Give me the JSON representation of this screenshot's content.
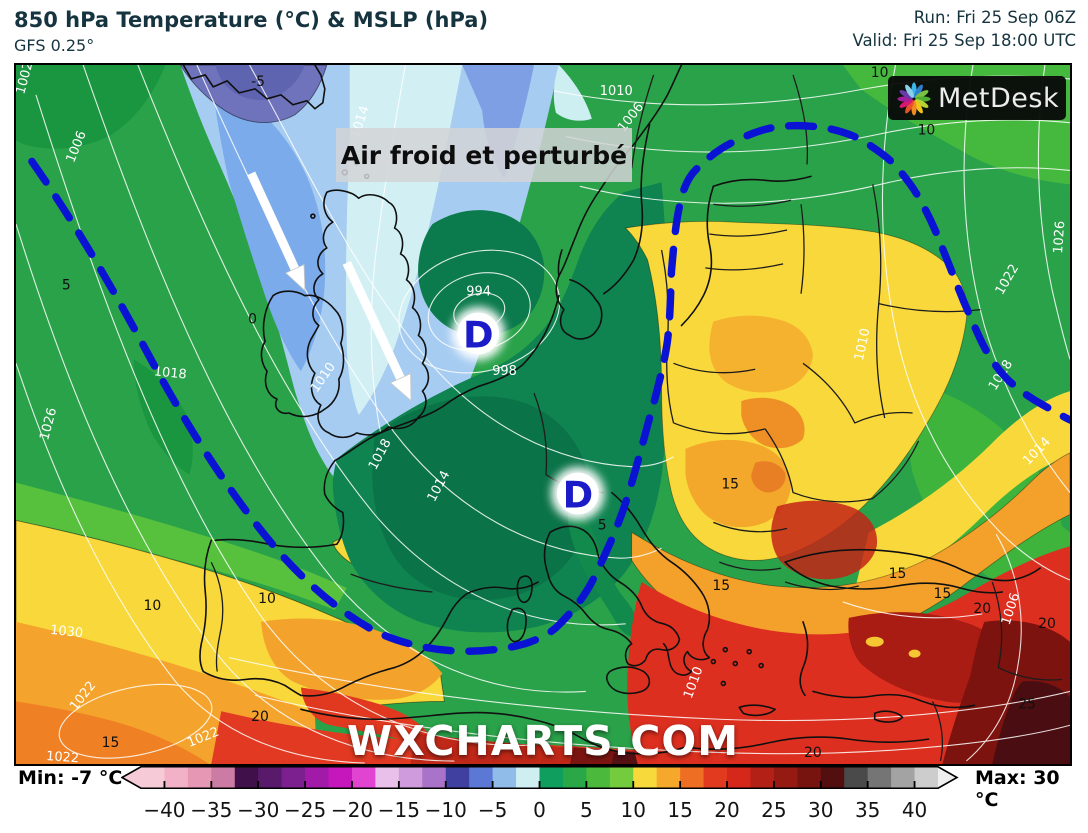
{
  "header": {
    "title": "850 hPa Temperature (°C) & MSLP (hPa)",
    "model": "GFS 0.25°",
    "run": "Run: Fri 25 Sep 06Z",
    "valid": "Valid: Fri 25 Sep 18:00 UTC",
    "text_color": "#16343f"
  },
  "map": {
    "annotation": "Air froid et perturbé",
    "watermark": "WXCHARTS.COM",
    "logo_text": "MetDesk",
    "front_line_color": "#0a13d4",
    "low_marker_color": "#1b1bc8",
    "low_markers": [
      {
        "label": "D"
      },
      {
        "label": "D"
      }
    ],
    "pressure_labels": [
      "1002",
      "1006",
      "1014",
      "1010",
      "1006",
      "1010",
      "1018",
      "1014",
      "1018",
      "1026",
      "1030",
      "1022",
      "1022",
      "1022",
      "994",
      "998",
      "1010",
      "1010",
      "1022",
      "1026",
      "1018",
      "1014",
      "1006"
    ],
    "temperature_labels": [
      "-5",
      "0",
      "5",
      "5",
      "10",
      "10",
      "10",
      "10",
      "15",
      "15",
      "15",
      "15",
      "15",
      "20",
      "20",
      "20",
      "20",
      "25"
    ]
  },
  "legend": {
    "min": "Min: -7 °C",
    "max": "Max: 30 °C",
    "ticks": [
      "−40",
      "−35",
      "−30",
      "−25",
      "−20",
      "−15",
      "−10",
      "−5",
      "0",
      "5",
      "10",
      "15",
      "20",
      "25",
      "30",
      "35",
      "40"
    ],
    "segments": [
      "#f6cad6",
      "#f2b1c6",
      "#e697b4",
      "#cc7ba4",
      "#3f1049",
      "#5a1a6b",
      "#7c2090",
      "#a21ba8",
      "#c517bc",
      "#e244d2",
      "#e9c0ea",
      "#cf9bdc",
      "#a873c8",
      "#4040a0",
      "#5b78d4",
      "#8fbce9",
      "#cfeef2",
      "#0f9e5e",
      "#2aa747",
      "#4ab93c",
      "#74cb3e",
      "#f8d93c",
      "#f5a82c",
      "#ee6f23",
      "#e23a1f",
      "#d5271a",
      "#b32016",
      "#951a12",
      "#77140f",
      "#530f10",
      "#4a4a4a",
      "#757575",
      "#a3a3a3",
      "#cdcdcd"
    ]
  }
}
